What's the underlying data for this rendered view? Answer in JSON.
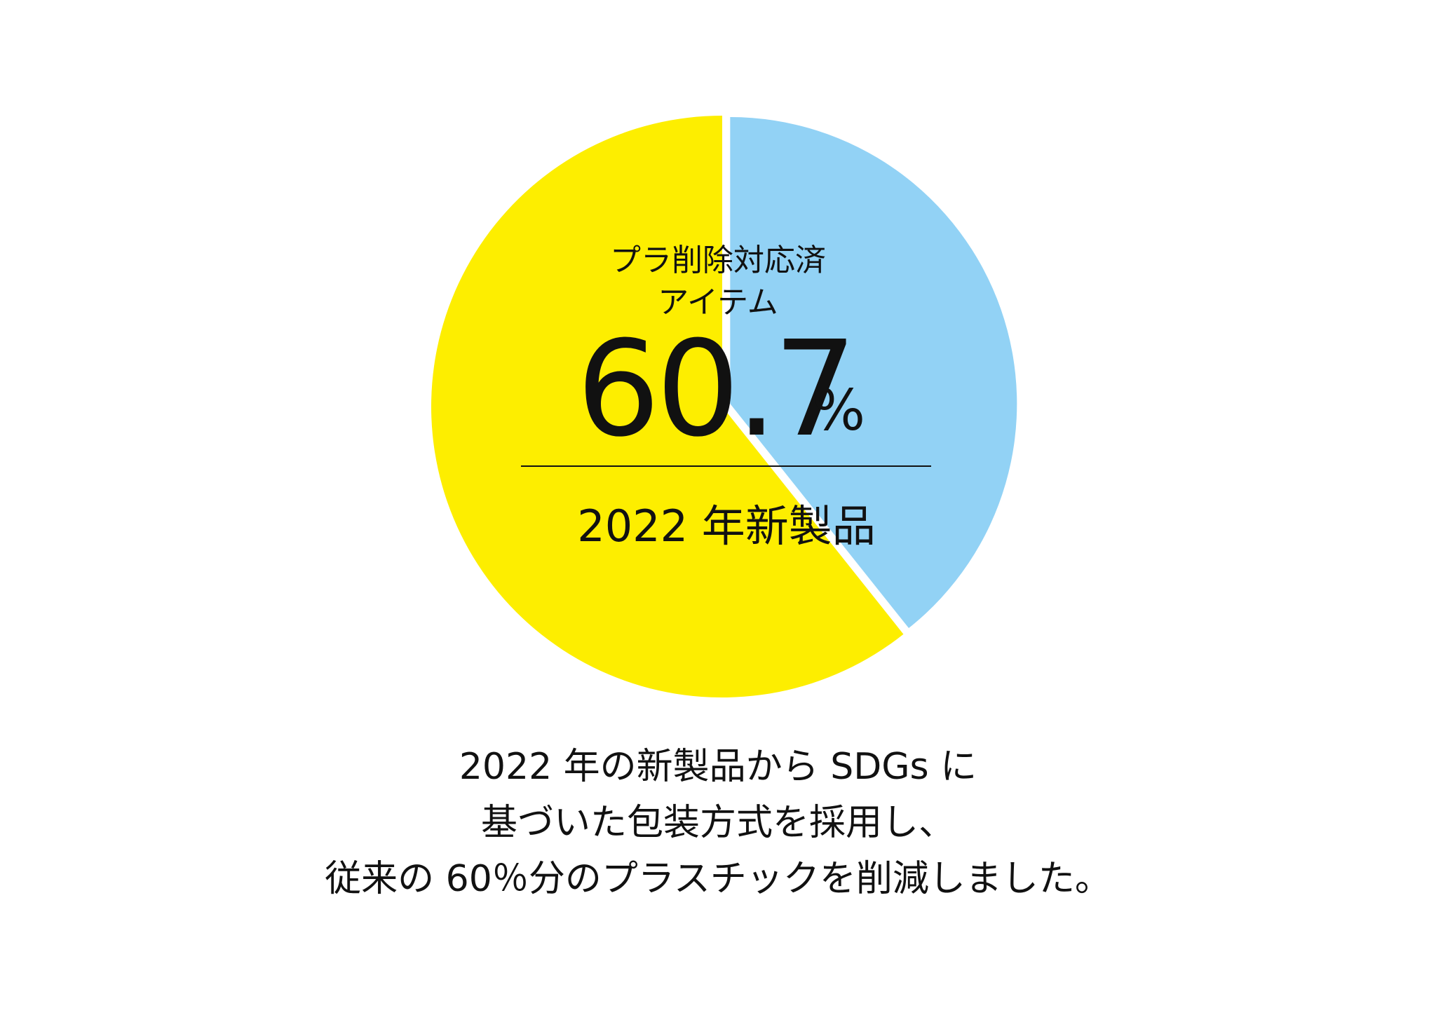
{
  "chart_data": {
    "type": "pie",
    "slices": [
      {
        "label": "プラ削除対応済アイテム",
        "value": 60.7,
        "color": "#FDEE00"
      },
      {
        "label": "",
        "value": 39.3,
        "color": "#92D2F5",
        "exploded": true
      }
    ],
    "center_label_lines": [
      "プラ削除対応済",
      "アイテム"
    ],
    "center_value": "60.7",
    "center_unit": "%",
    "center_sublabel": "2022 年新製品"
  },
  "caption_lines": [
    "2022 年の新製品から SDGs に",
    "基づいた包装方式を採用し、",
    "従来の 60％分のプラスチックを削減しました。"
  ]
}
